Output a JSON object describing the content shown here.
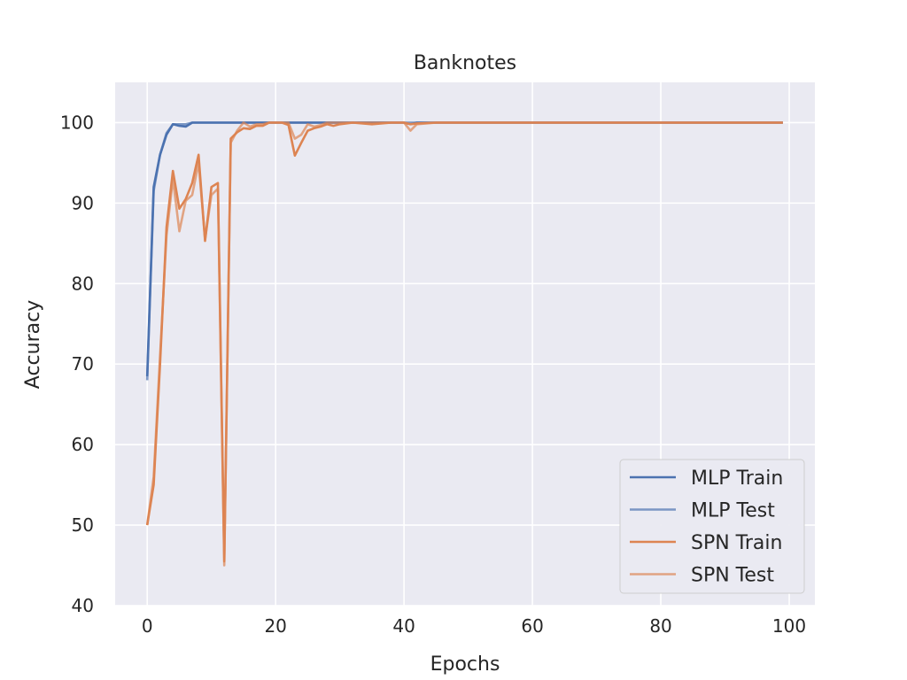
{
  "chart_data": {
    "type": "line",
    "title": "Banknotes",
    "xlabel": "Epochs",
    "ylabel": "Accuracy",
    "xlim": [
      -5,
      104
    ],
    "ylim": [
      40,
      105
    ],
    "xticks": [
      0,
      20,
      40,
      60,
      80,
      100
    ],
    "yticks": [
      40,
      50,
      60,
      70,
      80,
      90,
      100
    ],
    "grid": true,
    "legend_position": "lower-right",
    "series": [
      {
        "name": "MLP Train",
        "color": "#4c72b0",
        "opacity": 1.0,
        "x": [
          0,
          1,
          2,
          3,
          4,
          5,
          6,
          7,
          8,
          9,
          10,
          12,
          14,
          16,
          18,
          20,
          25,
          30,
          35,
          40,
          41,
          42,
          45,
          50,
          99
        ],
        "y": [
          68.5,
          92,
          96,
          98.5,
          99.8,
          99.6,
          99.5,
          100,
          100,
          100,
          100,
          100,
          100,
          100,
          100,
          100,
          100,
          100,
          100,
          100,
          99.8,
          100,
          100,
          100,
          100
        ]
      },
      {
        "name": "MLP Test",
        "color": "#4c72b0",
        "opacity": 0.7,
        "x": [
          0,
          1,
          2,
          3,
          4,
          5,
          6,
          7,
          8,
          9,
          10,
          12,
          14,
          16,
          18,
          20,
          25,
          30,
          35,
          40,
          41,
          42,
          45,
          50,
          99
        ],
        "y": [
          68,
          91.5,
          96,
          98.7,
          99.8,
          99.8,
          99.8,
          100,
          100,
          100,
          100,
          100,
          100,
          100,
          100,
          100,
          100,
          100,
          100,
          100,
          100,
          100,
          100,
          100,
          100
        ]
      },
      {
        "name": "SPN Train",
        "color": "#dd8452",
        "opacity": 1.0,
        "x": [
          0,
          1,
          2,
          3,
          4,
          5,
          6,
          7,
          8,
          9,
          10,
          11,
          12,
          13,
          14,
          15,
          16,
          17,
          18,
          19,
          20,
          21,
          22,
          23,
          24,
          25,
          26,
          27,
          28,
          29,
          30,
          32,
          35,
          38,
          40,
          41,
          42,
          45,
          50,
          99
        ],
        "y": [
          50,
          55,
          70,
          87,
          94,
          89.3,
          90.5,
          92.5,
          96,
          85.3,
          92,
          92.5,
          45.5,
          98,
          98.8,
          99.3,
          99.2,
          99.6,
          99.6,
          100,
          100,
          100,
          99.7,
          95.9,
          97.5,
          99,
          99.3,
          99.5,
          99.8,
          99.6,
          99.8,
          100,
          99.8,
          100,
          100,
          99.8,
          99.9,
          100,
          100,
          100
        ]
      },
      {
        "name": "SPN Test",
        "color": "#dd8452",
        "opacity": 0.7,
        "x": [
          0,
          1,
          2,
          3,
          4,
          5,
          6,
          7,
          8,
          9,
          10,
          11,
          12,
          13,
          14,
          15,
          16,
          17,
          18,
          19,
          20,
          21,
          22,
          23,
          24,
          25,
          26,
          27,
          28,
          29,
          30,
          32,
          35,
          38,
          40,
          41,
          42,
          45,
          50,
          99
        ],
        "y": [
          50,
          56,
          71,
          86,
          93,
          86.5,
          90.3,
          91,
          95,
          85.5,
          91,
          91.8,
          45,
          97.5,
          99,
          100,
          99.5,
          99.8,
          99.8,
          100,
          100,
          100,
          100,
          98,
          98.5,
          99.8,
          99.5,
          99.7,
          100,
          100,
          100,
          100,
          100,
          100,
          100,
          99,
          99.8,
          100,
          100,
          100
        ]
      }
    ]
  }
}
